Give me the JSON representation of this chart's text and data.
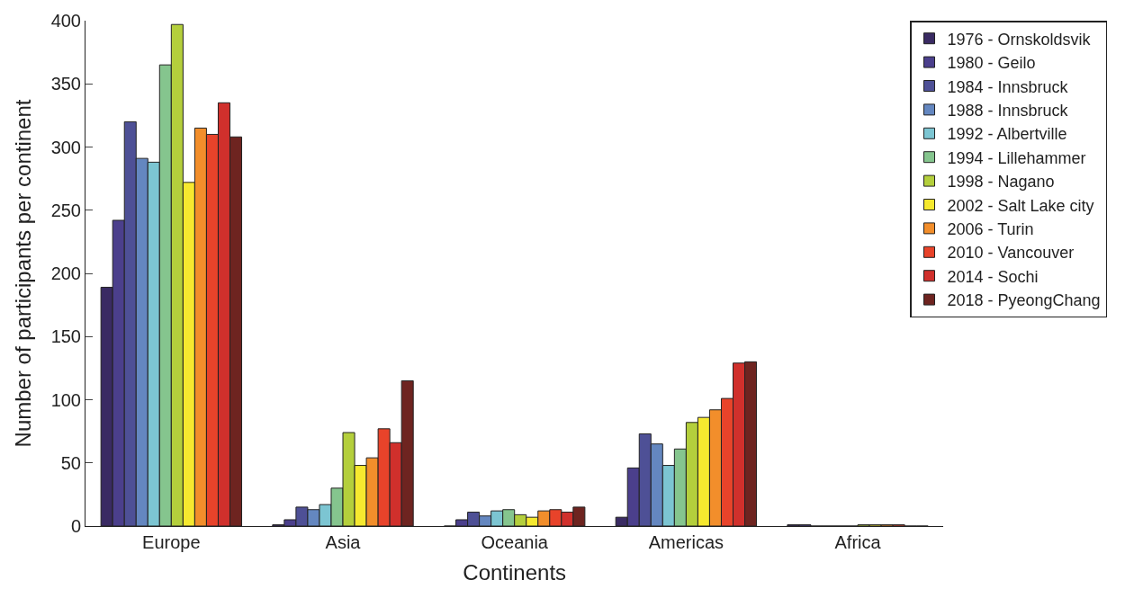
{
  "chart_data": {
    "type": "bar",
    "xlabel": "Continents",
    "ylabel": "Number of participants per continent",
    "categories": [
      "Europe",
      "Asia",
      "Oceania",
      "Americas",
      "Africa"
    ],
    "series": [
      {
        "name": "1976 - Ornskoldsvik",
        "color": "#3a2b63",
        "values": [
          189,
          1,
          0,
          7,
          1
        ]
      },
      {
        "name": "1980 - Geilo",
        "color": "#4b3f8c",
        "values": [
          242,
          5,
          5,
          46,
          1
        ]
      },
      {
        "name": "1984 - Innsbruck",
        "color": "#4e5096",
        "values": [
          320,
          15,
          11,
          73,
          0
        ]
      },
      {
        "name": "1988 - Innsbruck",
        "color": "#6487c0",
        "values": [
          291,
          13,
          8,
          65,
          0
        ]
      },
      {
        "name": "1992 - Albertville",
        "color": "#7cc5d2",
        "values": [
          288,
          17,
          12,
          48,
          0
        ]
      },
      {
        "name": "1994 - Lillehammer",
        "color": "#85c58e",
        "values": [
          365,
          30,
          13,
          61,
          0
        ]
      },
      {
        "name": "1998 - Nagano",
        "color": "#b4cf3c",
        "values": [
          397,
          74,
          9,
          82,
          1
        ]
      },
      {
        "name": "2002 - Salt Lake city",
        "color": "#f6e92f",
        "values": [
          272,
          48,
          7,
          86,
          1
        ]
      },
      {
        "name": "2006 - Turin",
        "color": "#f28e2b",
        "values": [
          315,
          54,
          12,
          92,
          1
        ]
      },
      {
        "name": "2010 - Vancouver",
        "color": "#e8432a",
        "values": [
          310,
          77,
          13,
          101,
          1
        ]
      },
      {
        "name": "2014 - Sochi",
        "color": "#d0302c",
        "values": [
          335,
          66,
          11,
          129,
          0
        ]
      },
      {
        "name": "2018 - PyeongChang",
        "color": "#6e2420",
        "values": [
          308,
          115,
          15,
          130,
          0
        ]
      }
    ],
    "ylim": [
      0,
      400
    ],
    "yticks": [
      0,
      50,
      100,
      150,
      200,
      250,
      300,
      350,
      400
    ],
    "legend": "right"
  }
}
